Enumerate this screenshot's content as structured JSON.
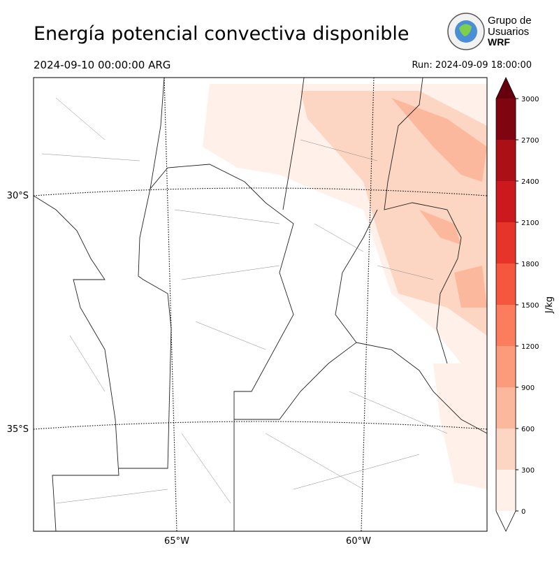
{
  "header": {
    "title": "Energía potencial convectiva disponible",
    "valid_time": "2024-09-10 00:00:00 ARG",
    "run": "Run: 2024-09-09 18:00:00"
  },
  "logo": {
    "line1": "Grupo de",
    "line2": "Usuarios",
    "line3": "WRF"
  },
  "map": {
    "lat_labels": [
      "30°S",
      "35°S"
    ],
    "lon_labels": [
      "65°W",
      "60°W"
    ]
  },
  "colorbar": {
    "label": "J/kg",
    "lim": [
      0,
      3000
    ],
    "ticks": [
      0,
      300,
      600,
      900,
      1200,
      1500,
      1800,
      2100,
      2400,
      2700,
      3000
    ],
    "colors": [
      "#fff0e9",
      "#fdd5c3",
      "#fcb89d",
      "#fc9b7c",
      "#fb7d5d",
      "#f5563e",
      "#e6342a",
      "#cc191e",
      "#ab1016",
      "#7f0610"
    ],
    "over_color": "#67000d"
  }
}
